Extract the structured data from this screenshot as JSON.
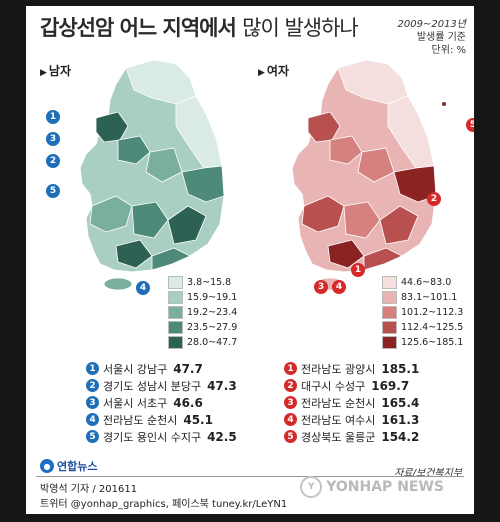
{
  "title": {
    "main": "갑상선암 어느 지역에서",
    "light": "많이 발생하나"
  },
  "unit": {
    "period": "2009~2013년",
    "basis": "발생률 기준",
    "unit": "단위: %"
  },
  "male": {
    "label": "남자",
    "legend": [
      "3.8~15.8",
      "15.9~19.1",
      "19.2~23.4",
      "23.5~27.9",
      "28.0~47.7"
    ],
    "legend_colors": [
      "#d9ebe4",
      "#a9cfc2",
      "#7aaf9e",
      "#4d8a79",
      "#2c6153"
    ],
    "marker_color": "#1f6fb8",
    "ranking": [
      {
        "rank": "1",
        "name": "서울시 강남구",
        "value": "47.7"
      },
      {
        "rank": "2",
        "name": "경기도 성남시 분당구",
        "value": "47.3"
      },
      {
        "rank": "3",
        "name": "서울시 서초구",
        "value": "46.6"
      },
      {
        "rank": "4",
        "name": "전라남도 순천시",
        "value": "45.1"
      },
      {
        "rank": "5",
        "name": "경기도 용인시 수지구",
        "value": "42.5"
      }
    ]
  },
  "female": {
    "label": "여자",
    "legend": [
      "44.6~83.0",
      "83.1~101.1",
      "101.2~112.3",
      "112.4~125.5",
      "125.6~185.1"
    ],
    "legend_colors": [
      "#f5dede",
      "#e9b4b4",
      "#d68080",
      "#b85050",
      "#8c2323"
    ],
    "marker_color": "#d42a2a",
    "ranking": [
      {
        "rank": "1",
        "name": "전라남도 광양시",
        "value": "185.1"
      },
      {
        "rank": "2",
        "name": "대구시 수성구",
        "value": "169.7"
      },
      {
        "rank": "3",
        "name": "전라남도 순천시",
        "value": "165.4"
      },
      {
        "rank": "4",
        "name": "전라남도 여수시",
        "value": "161.3"
      },
      {
        "rank": "5",
        "name": "경상북도 울릉군",
        "value": "154.2"
      }
    ]
  },
  "logo": {
    "text": "연합뉴스"
  },
  "source": "자료/보건복지부",
  "credit": {
    "line1": "박영석 기자 / 201611",
    "line2": "트위터 @yonhap_graphics, 페이스북 tuney.kr/LeYN1"
  },
  "watermark": "YONHAP NEWS"
}
